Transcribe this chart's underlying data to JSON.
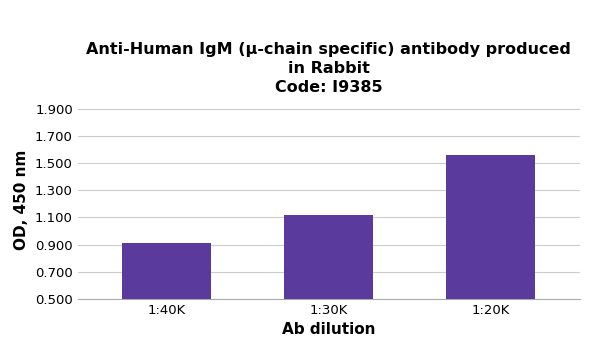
{
  "title_line1": "Anti-Human IgM (μ-chain specific) antibody produced",
  "title_line2": "in Rabbit",
  "title_line3": "Code: I9385",
  "categories": [
    "1:40K",
    "1:30K",
    "1:20K"
  ],
  "values": [
    0.91,
    1.12,
    1.56
  ],
  "bar_color": "#5b3a9e",
  "xlabel": "Ab dilution",
  "ylabel": "OD, 450 nm",
  "ylim": [
    0.5,
    1.96
  ],
  "yticks": [
    0.5,
    0.7,
    0.9,
    1.1,
    1.3,
    1.5,
    1.7,
    1.9
  ],
  "ytick_labels": [
    "0.500",
    "0.700",
    "0.900",
    "1.100",
    "1.300",
    "1.500",
    "1.700",
    "1.900"
  ],
  "background_color": "#ffffff",
  "grid_color": "#cccccc",
  "title_fontsize": 11.5,
  "axis_label_fontsize": 11,
  "tick_fontsize": 9.5,
  "bar_width": 0.55
}
